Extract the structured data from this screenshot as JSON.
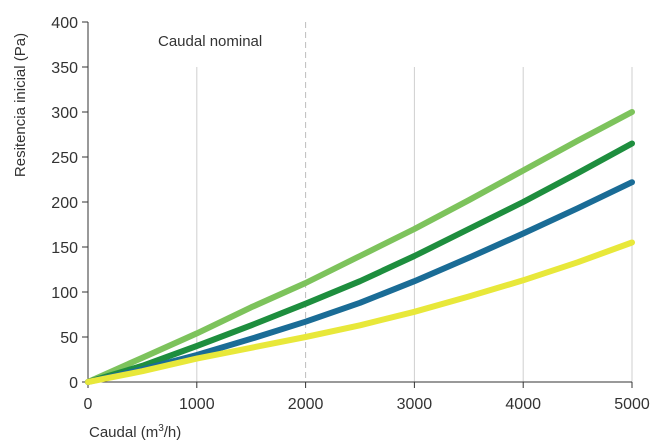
{
  "chart_data": {
    "type": "line",
    "title": "",
    "xlabel": "Caudal (m",
    "xlabel_sup": "3",
    "xlabel_tail": "/h)",
    "ylabel": "Resitencia inicial (Pa)",
    "xlim": [
      0,
      5000
    ],
    "ylim": [
      0,
      400
    ],
    "x_ticks": [
      0,
      1000,
      2000,
      3000,
      4000,
      5000
    ],
    "y_ticks": [
      0,
      50,
      100,
      150,
      200,
      250,
      300,
      350,
      400
    ],
    "grid": "vertical",
    "annotation": {
      "text": "Caudal nominal",
      "x": 2000
    },
    "x": [
      0,
      500,
      1000,
      1500,
      2000,
      2500,
      3000,
      3500,
      4000,
      4500,
      5000
    ],
    "series": [
      {
        "color": "#7DC35C",
        "values": [
          0,
          27,
          54,
          83,
          110,
          140,
          170,
          202,
          235,
          268,
          300
        ]
      },
      {
        "color": "#1E8E3E",
        "values": [
          0,
          18,
          40,
          63,
          87,
          112,
          140,
          170,
          200,
          232,
          265
        ]
      },
      {
        "color": "#1A6C96",
        "values": [
          0,
          14,
          30,
          48,
          67,
          88,
          112,
          138,
          165,
          193,
          222
        ]
      },
      {
        "color": "#E8E83A",
        "values": [
          0,
          12,
          26,
          38,
          50,
          63,
          78,
          95,
          113,
          133,
          155
        ]
      }
    ]
  }
}
